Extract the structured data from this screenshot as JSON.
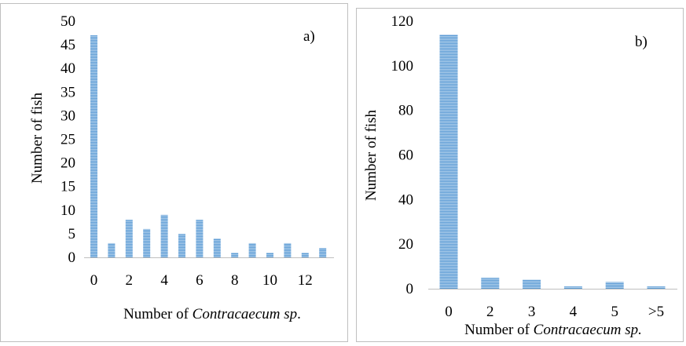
{
  "colors": {
    "bar_fill": "#5b9bd5",
    "bar_stripe": "#ffffff",
    "frame": "#bfbfbf",
    "axis": "#bfbfbf"
  },
  "chart_data": [
    {
      "type": "bar",
      "panel_label": "a)",
      "ylabel": "Number of fish",
      "xlabel_prefix": "Number of ",
      "xlabel_italic": "Contracaecum sp",
      "xlabel_suffix": ".",
      "ylim": [
        0,
        50
      ],
      "yticks": [
        "0",
        "5",
        "10",
        "15",
        "20",
        "25",
        "30",
        "35",
        "40",
        "45",
        "50"
      ],
      "categories": [
        0,
        1,
        2,
        3,
        4,
        5,
        6,
        7,
        8,
        9,
        10,
        11,
        12,
        13
      ],
      "xtick_labels": [
        "0",
        "",
        "2",
        "",
        "4",
        "",
        "6",
        "",
        "8",
        "",
        "10",
        "",
        "12",
        ""
      ],
      "values": [
        47,
        3,
        8,
        6,
        9,
        5,
        8,
        4,
        1,
        3,
        1,
        3,
        1,
        2
      ],
      "grid": false
    },
    {
      "type": "bar",
      "panel_label": "b)",
      "ylabel": "Number of fish",
      "xlabel_prefix": "Number of ",
      "xlabel_italic": "Contracaecum sp.",
      "xlabel_suffix": "",
      "ylim": [
        0,
        120
      ],
      "yticks": [
        "0",
        "20",
        "40",
        "60",
        "80",
        "100",
        "120"
      ],
      "categories": [
        "0",
        "2",
        "3",
        "4",
        "5",
        ">5"
      ],
      "xtick_labels": [
        "0",
        "2",
        "3",
        "4",
        "5",
        ">5"
      ],
      "values": [
        114,
        5,
        4,
        1,
        3,
        1
      ],
      "grid": false
    }
  ]
}
